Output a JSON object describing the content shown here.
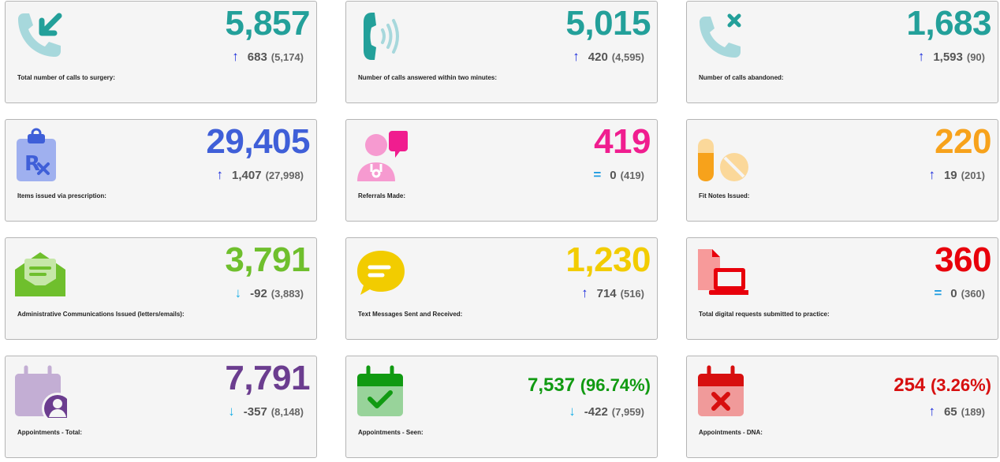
{
  "cards": [
    {
      "label": "Total number of calls to surgery:",
      "value": "5,857",
      "arrow": "↑",
      "delta": "683",
      "previous": "(5,174)",
      "color": "#23a09a",
      "arrow_color": "#1a2bdc",
      "icon": "phone-incoming-icon"
    },
    {
      "label": "Number of calls answered within two minutes:",
      "value": "5,015",
      "arrow": "↑",
      "delta": "420",
      "previous": "(4,595)",
      "color": "#23a09a",
      "arrow_color": "#1a2bdc",
      "icon": "phone-ringing-icon"
    },
    {
      "label": "Number of calls abandoned:",
      "value": "1,683",
      "arrow": "↑",
      "delta": "1,593",
      "previous": "(90)",
      "color": "#23a09a",
      "arrow_color": "#1a2bdc",
      "icon": "phone-missed-icon"
    },
    {
      "label": "Items issued via prescription:",
      "value": "29,405",
      "arrow": "↑",
      "delta": "1,407",
      "previous": "(27,998)",
      "color": "#3f5fd8",
      "arrow_color": "#1a2bdc",
      "icon": "prescription-clipboard-icon"
    },
    {
      "label": "Referrals Made:",
      "value": "419",
      "arrow": "=",
      "delta": "0",
      "previous": "(419)",
      "color": "#f01d8f",
      "arrow_color": "#1e9be0",
      "icon": "doctor-chat-icon"
    },
    {
      "label": "Fit Notes Issued:",
      "value": "220",
      "arrow": "↑",
      "delta": "19",
      "previous": "(201)",
      "color": "#f7a21b",
      "arrow_color": "#1a2bdc",
      "icon": "pills-icon"
    },
    {
      "label": "Administrative Communications Issued (letters/emails):",
      "value": "3,791",
      "arrow": "↓",
      "delta": "-92",
      "previous": "(3,883)",
      "color": "#6fbf2d",
      "arrow_color": "#1eb0e6",
      "icon": "envelope-letter-icon"
    },
    {
      "label": "Text Messages Sent and Received:",
      "value": "1,230",
      "arrow": "↑",
      "delta": "714",
      "previous": "(516)",
      "color": "#f2cc00",
      "arrow_color": "#1a2bdc",
      "icon": "chat-bubble-icon"
    },
    {
      "label": "Total digital requests submitted to practice:",
      "value": "360",
      "arrow": "=",
      "delta": "0",
      "previous": "(360)",
      "color": "#e8000b",
      "arrow_color": "#1e9be0",
      "icon": "laptop-document-icon"
    },
    {
      "label": "Appointments - Total:",
      "value": "7,791",
      "pct": "",
      "arrow": "↓",
      "delta": "-357",
      "previous": "(8,148)",
      "color": "#6b3d8f",
      "arrow_color": "#1eb0e6",
      "icon": "calendar-person-icon"
    },
    {
      "label": "Appointments - Seen:",
      "value": "7,537",
      "pct": "(96.74%)",
      "arrow": "↓",
      "delta": "-422",
      "previous": "(7,959)",
      "color": "#119a12",
      "arrow_color": "#1eb0e6",
      "icon": "calendar-check-icon"
    },
    {
      "label": "Appointments - DNA:",
      "value": "254",
      "pct": "(3.26%)",
      "arrow": "↑",
      "delta": "65",
      "previous": "(189)",
      "color": "#d70f0f",
      "arrow_color": "#1a2bdc",
      "icon": "calendar-cross-icon"
    }
  ]
}
